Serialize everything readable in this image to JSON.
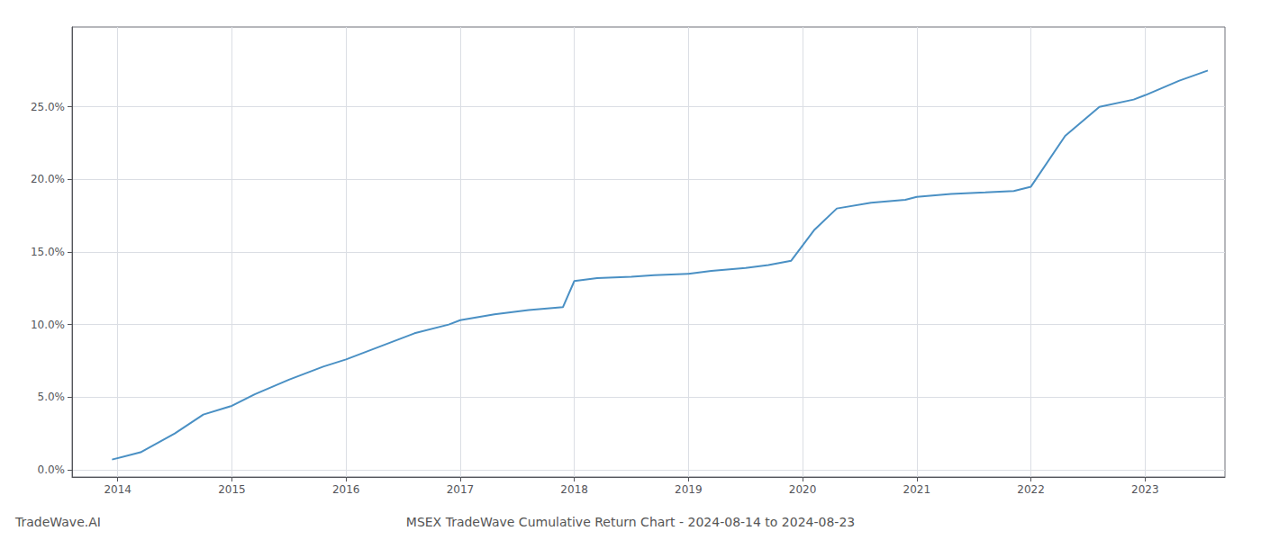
{
  "chart_data": {
    "type": "line",
    "title": "MSEX TradeWave Cumulative Return Chart - 2024-08-14 to 2024-08-23",
    "annotations": [
      "TradeWave.AI"
    ],
    "color": "#4a90c4",
    "x": [
      2013.95,
      2014.2,
      2014.5,
      2014.75,
      2015.0,
      2015.2,
      2015.5,
      2015.8,
      2016.0,
      2016.3,
      2016.6,
      2016.9,
      2017.0,
      2017.3,
      2017.6,
      2017.9,
      2018.0,
      2018.2,
      2018.5,
      2018.7,
      2019.0,
      2019.2,
      2019.5,
      2019.7,
      2019.9,
      2020.1,
      2020.3,
      2020.6,
      2020.9,
      2021.0,
      2021.3,
      2021.6,
      2021.85,
      2022.0,
      2022.3,
      2022.6,
      2022.9,
      2023.0,
      2023.3,
      2023.55
    ],
    "values": [
      0.007,
      0.012,
      0.025,
      0.038,
      0.044,
      0.052,
      0.062,
      0.071,
      0.076,
      0.085,
      0.094,
      0.1,
      0.103,
      0.107,
      0.11,
      0.112,
      0.13,
      0.132,
      0.133,
      0.134,
      0.135,
      0.137,
      0.139,
      0.141,
      0.144,
      0.165,
      0.18,
      0.184,
      0.186,
      0.188,
      0.19,
      0.191,
      0.192,
      0.195,
      0.23,
      0.25,
      0.255,
      0.258,
      0.268,
      0.275
    ],
    "xlim": [
      2013.6,
      2023.7
    ],
    "ylim": [
      -0.005,
      0.305
    ],
    "xticks": [
      2014,
      2015,
      2016,
      2017,
      2018,
      2019,
      2020,
      2021,
      2022,
      2023
    ],
    "yticks": [
      {
        "value": 0.0,
        "label": "0.0%"
      },
      {
        "value": 0.05,
        "label": "5.0%"
      },
      {
        "value": 0.1,
        "label": "10.0%"
      },
      {
        "value": 0.15,
        "label": "15.0%"
      },
      {
        "value": 0.2,
        "label": "20.0%"
      },
      {
        "value": 0.25,
        "label": "25.0%"
      }
    ],
    "grid": true
  }
}
